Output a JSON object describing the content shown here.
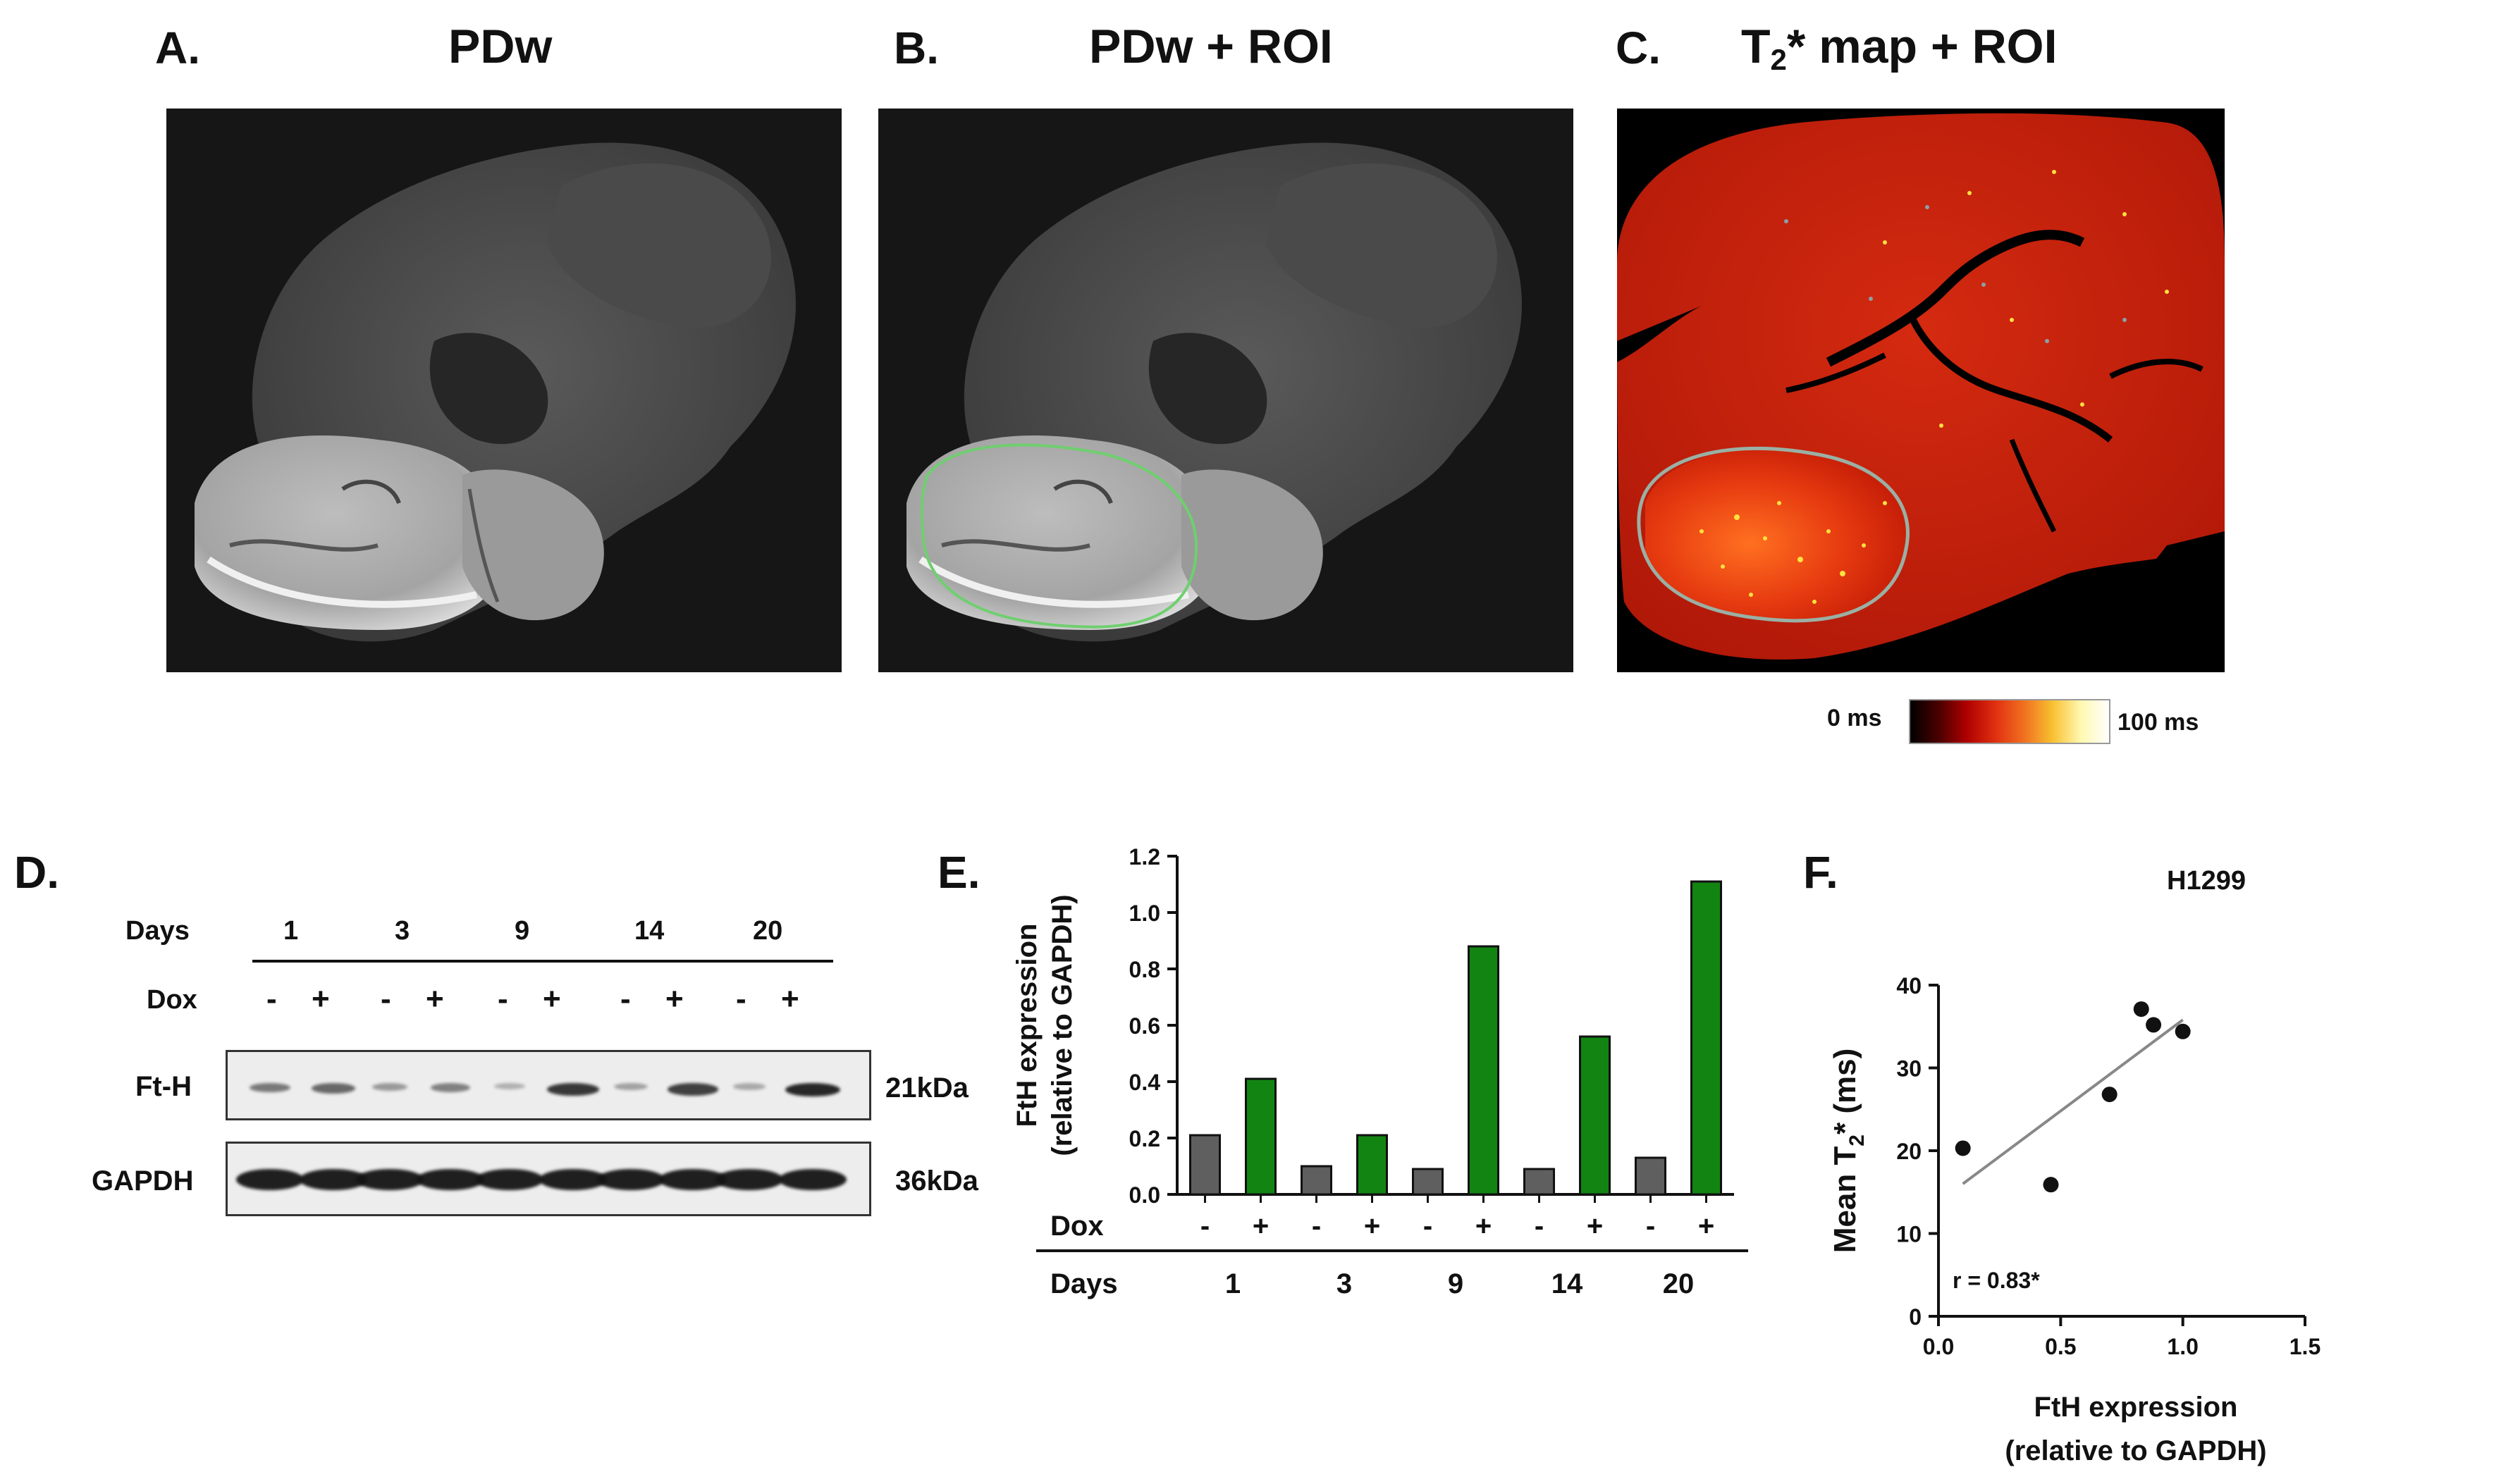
{
  "panels": {
    "A": {
      "letter": "A.",
      "title": "PDw"
    },
    "B": {
      "letter": "B.",
      "title": "PDw + ROI"
    },
    "C": {
      "letter": "C.",
      "title_main": "T",
      "title_sub": "2",
      "title_rest": "* map + ROI",
      "colorbar": {
        "min_label": "0 ms",
        "max_label": "100 ms",
        "colors": [
          "#000000",
          "#4a0000",
          "#b00000",
          "#e03010",
          "#f07020",
          "#f8c030",
          "#fff8b0",
          "#ffffff"
        ]
      }
    },
    "D": {
      "letter": "D.",
      "days_label": "Days",
      "dox_label": "Dox",
      "days": [
        "1",
        "3",
        "9",
        "14",
        "20"
      ],
      "dox_signs": [
        "-",
        "+",
        "-",
        "+",
        "-",
        "+",
        "-",
        "+",
        "-",
        "+"
      ],
      "bands": [
        {
          "name": "Ft-H",
          "size": "21kDa",
          "intensities": [
            0.45,
            0.55,
            0.25,
            0.4,
            0.1,
            0.85,
            0.2,
            0.8,
            0.15,
            0.95
          ]
        },
        {
          "name": "GAPDH",
          "size": "36kDa",
          "intensities": [
            1,
            1,
            1,
            1,
            1,
            1,
            1,
            1,
            1,
            1
          ]
        }
      ]
    },
    "E": {
      "letter": "E."
    },
    "F": {
      "letter": "F."
    }
  },
  "chart_data": [
    {
      "panel": "E",
      "type": "bar",
      "title": "",
      "ylabel_line1": "FtH expression",
      "ylabel_line2": "(relative to GAPDH)",
      "ylim": [
        0,
        1.2
      ],
      "yticks": [
        "0.0",
        "0.2",
        "0.4",
        "0.6",
        "0.8",
        "1.0",
        "1.2"
      ],
      "dox_label": "Dox",
      "days_label": "Days",
      "categories": [
        "-",
        "+",
        "-",
        "+",
        "-",
        "+",
        "-",
        "+",
        "-",
        "+"
      ],
      "days": [
        "1",
        "3",
        "9",
        "14",
        "20"
      ],
      "values": [
        0.21,
        0.41,
        0.1,
        0.21,
        0.09,
        0.88,
        0.09,
        0.56,
        0.13,
        1.11
      ],
      "colors": {
        "minus": "#5f5f5f",
        "plus": "#128412"
      }
    },
    {
      "panel": "F",
      "type": "scatter",
      "title": "H1299",
      "xlabel_line1": "FtH expression",
      "xlabel_line2": "(relative to GAPDH)",
      "ylabel_main": "Mean T",
      "ylabel_sub": "2",
      "ylabel_rest": "* (ms)",
      "xlim": [
        0,
        1.5
      ],
      "ylim": [
        0,
        40
      ],
      "xticks": [
        "0.0",
        "0.5",
        "1.0",
        "1.5"
      ],
      "yticks": [
        "0",
        "10",
        "20",
        "30",
        "40"
      ],
      "annotation": "r = 0.83*",
      "points": [
        [
          0.1,
          20.3
        ],
        [
          0.46,
          15.9
        ],
        [
          0.7,
          26.8
        ],
        [
          0.83,
          37.1
        ],
        [
          0.88,
          35.2
        ],
        [
          1.0,
          34.4
        ]
      ],
      "fit_line": [
        [
          0.1,
          16.0
        ],
        [
          1.0,
          35.8
        ]
      ]
    }
  ]
}
